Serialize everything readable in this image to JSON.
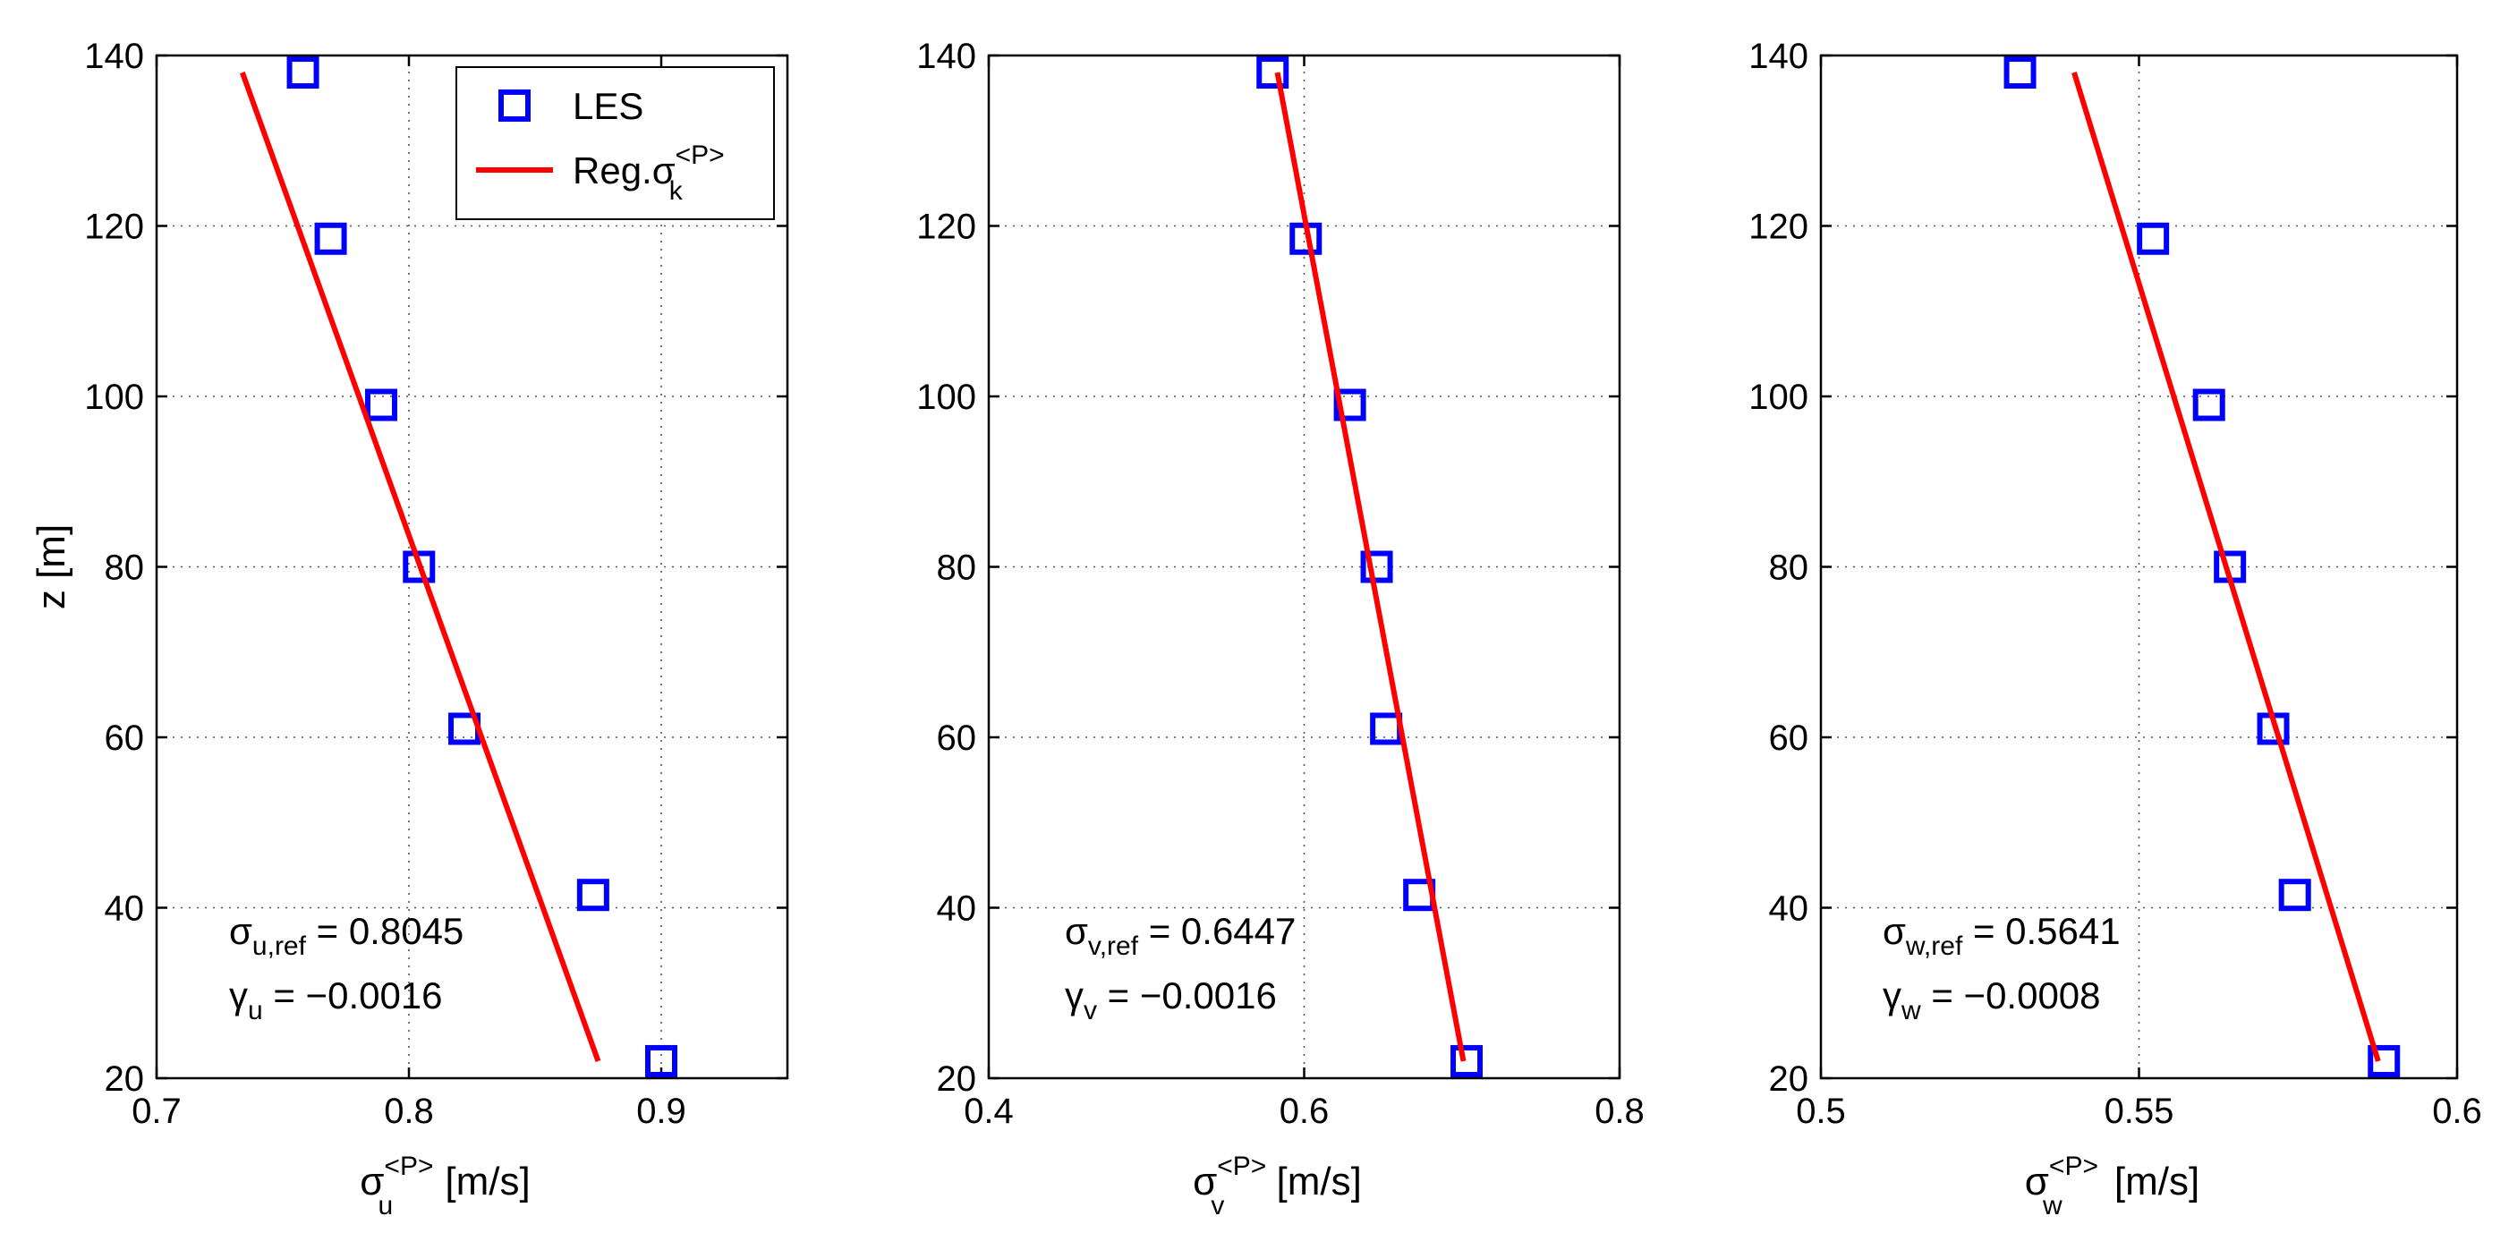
{
  "chart_data": [
    {
      "type": "scatter",
      "component": "u",
      "xlim": [
        0.7,
        0.95
      ],
      "ylim": [
        20,
        140
      ],
      "xticks": [
        "0.7",
        "0.8",
        "0.9"
      ],
      "xtick_values": [
        0.7,
        0.8,
        0.9
      ],
      "yticks": [
        "20",
        "40",
        "60",
        "80",
        "100",
        "120",
        "140"
      ],
      "ytick_values": [
        20,
        40,
        60,
        80,
        100,
        120,
        140
      ],
      "xlabel_base": "σ",
      "xlabel_sup": "<P>",
      "xlabel_sub": "u",
      "xlabel_unit": " [m/s]",
      "ylabel": "z [m]",
      "grid": true,
      "series": [
        {
          "name": "LES",
          "mode": "markers",
          "marker": "square",
          "color": "#0000ff",
          "x": [
            0.9,
            0.873,
            0.822,
            0.804,
            0.789,
            0.769,
            0.758
          ],
          "z": [
            22,
            41.5,
            61,
            80,
            99,
            118.5,
            138
          ]
        },
        {
          "name": "Reg.σ_k^<P>",
          "mode": "line",
          "color": "#ff0000",
          "x": [
            0.875,
            0.734
          ],
          "z": [
            22,
            138
          ]
        }
      ],
      "stats": {
        "ref_base": "σ",
        "ref_sub": "u,ref",
        "ref_value": " = 0.8045",
        "gamma_base": "γ",
        "gamma_sub": "u",
        "gamma_value": " = −0.0016"
      },
      "legend": {
        "position": "top-right",
        "les": "LES",
        "reg_base": "Reg.σ",
        "reg_sub": "k",
        "reg_sup": "<P>"
      }
    },
    {
      "type": "scatter",
      "component": "v",
      "xlim": [
        0.4,
        0.8
      ],
      "ylim": [
        20,
        140
      ],
      "xticks": [
        "0.4",
        "0.6",
        "0.8"
      ],
      "xtick_values": [
        0.4,
        0.6,
        0.8
      ],
      "yticks": [
        "20",
        "40",
        "60",
        "80",
        "100",
        "120",
        "140"
      ],
      "ytick_values": [
        20,
        40,
        60,
        80,
        100,
        120,
        140
      ],
      "xlabel_base": "σ",
      "xlabel_sup": "<P>",
      "xlabel_sub": "v",
      "xlabel_unit": " [m/s]",
      "ylabel": "",
      "grid": true,
      "series": [
        {
          "name": "LES",
          "mode": "markers",
          "marker": "square",
          "color": "#0000ff",
          "x": [
            0.703,
            0.673,
            0.652,
            0.646,
            0.629,
            0.601,
            0.58
          ],
          "z": [
            22,
            41.5,
            61,
            80,
            99,
            118.5,
            138
          ]
        },
        {
          "name": "Reg",
          "mode": "line",
          "color": "#ff0000",
          "x": [
            0.701,
            0.583
          ],
          "z": [
            22,
            138
          ]
        }
      ],
      "stats": {
        "ref_base": "σ",
        "ref_sub": "v,ref",
        "ref_value": " = 0.6447",
        "gamma_base": "γ",
        "gamma_sub": "v",
        "gamma_value": " = −0.0016"
      }
    },
    {
      "type": "scatter",
      "component": "w",
      "xlim": [
        0.5,
        0.6
      ],
      "ylim": [
        20,
        140
      ],
      "xticks": [
        "0.5",
        "0.55",
        "0.6"
      ],
      "xtick_values": [
        0.5,
        0.55,
        0.6
      ],
      "yticks": [
        "20",
        "40",
        "60",
        "80",
        "100",
        "120",
        "140"
      ],
      "ytick_values": [
        20,
        40,
        60,
        80,
        100,
        120,
        140
      ],
      "xlabel_base": "σ",
      "xlabel_sup": "<P>",
      "xlabel_sub": "w",
      "xlabel_unit": " [m/s]",
      "ylabel": "",
      "grid": true,
      "series": [
        {
          "name": "LES",
          "mode": "markers",
          "marker": "square",
          "color": "#0000ff",
          "x": [
            0.5885,
            0.5745,
            0.5711,
            0.5643,
            0.561,
            0.5522,
            0.5313
          ],
          "z": [
            22,
            41.5,
            61,
            80,
            99,
            118.5,
            138
          ]
        },
        {
          "name": "Reg",
          "mode": "line",
          "color": "#ff0000",
          "x": [
            0.5876,
            0.5398
          ],
          "z": [
            22,
            138
          ]
        }
      ],
      "stats": {
        "ref_base": "σ",
        "ref_sub": "w,ref",
        "ref_value": " = 0.5641",
        "gamma_base": "γ",
        "gamma_sub": "w",
        "gamma_value": " = −0.0008"
      }
    }
  ]
}
